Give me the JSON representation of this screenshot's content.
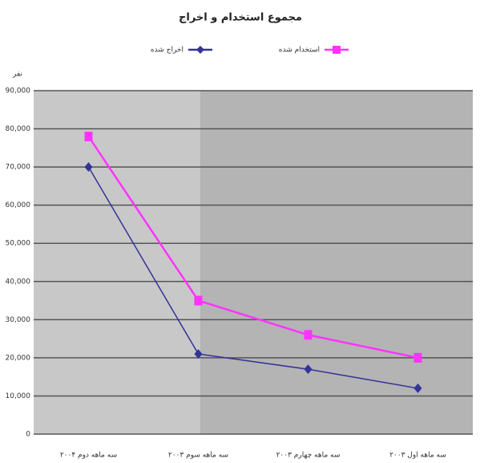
{
  "chart_data": {
    "type": "line",
    "title": "مجموع استخدام و اخراج",
    "y_label": "نفر",
    "categories": [
      "سه ماهه دوم ۲۰۰۴",
      "سه ماهه سوم ۲۰۰۳",
      "سه ماهه چهارم ۲۰۰۳",
      "سه ماهه اول ۲۰۰۳"
    ],
    "series": [
      {
        "name": "استخدام شده",
        "color": "#ff33ff",
        "values": [
          78000,
          35000,
          26000,
          20000
        ]
      },
      {
        "name": "اخراج شده",
        "color": "#333399",
        "values": [
          70000,
          21000,
          17000,
          12000
        ]
      }
    ],
    "ylim": [
      0,
      90000
    ],
    "yticks": [
      0,
      {
        "value": 10000,
        "label": "10,000"
      },
      {
        "value": 20000,
        "label": "20,000"
      },
      {
        "value": 30000,
        "label": "30,000"
      },
      {
        "value": 40000,
        "label": "40,000"
      },
      {
        "value": 50000,
        "label": "50,000"
      },
      {
        "value": 60000,
        "label": "60,000"
      },
      {
        "value": 70000,
        "label": "70,000"
      },
      {
        "value": 80000,
        "label": "80,000"
      },
      {
        "value": 90000,
        "label": "90,000"
      }
    ],
    "grid": true
  }
}
